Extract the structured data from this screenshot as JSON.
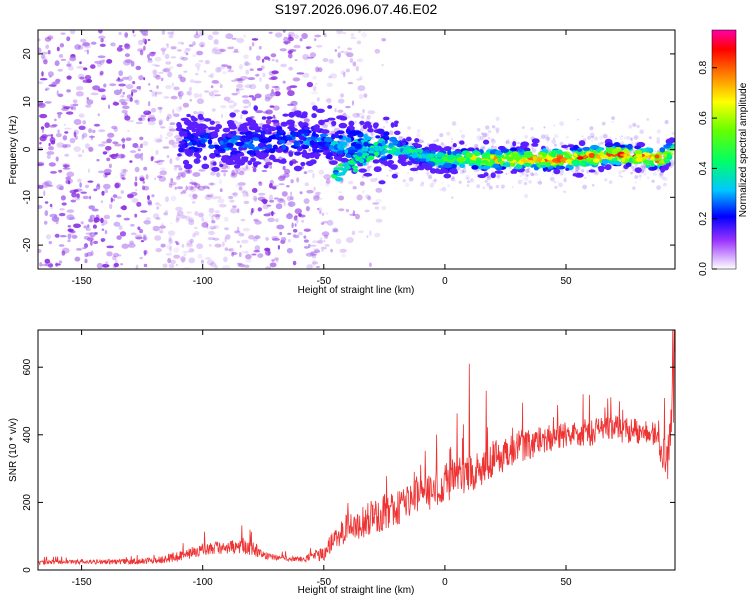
{
  "chart_data": [
    {
      "type": "heatmap",
      "title": "S197.2026.096.07.46.E02",
      "xlabel": "Height of straight line (km)",
      "ylabel": "Frequency (Hz)",
      "xlim": [
        -168,
        95
      ],
      "ylim": [
        -25,
        25
      ],
      "x_ticks": [
        -150,
        -100,
        -50,
        0,
        50
      ],
      "x_tick_labels": [
        "-150",
        "-100",
        "-50",
        "0",
        "50"
      ],
      "y_ticks": [
        -20,
        -10,
        0,
        10,
        20
      ],
      "y_tick_labels": [
        "-20",
        "-10",
        "0",
        "10",
        "20"
      ],
      "ridge": {
        "x": [
          -110,
          -90,
          -70,
          -55,
          -45,
          -30,
          -18,
          -5,
          10,
          30,
          50,
          70,
          90,
          94
        ],
        "y": [
          2,
          1,
          2,
          2,
          1,
          1,
          0,
          -2,
          -2,
          -2,
          -2,
          -1,
          -2,
          0
        ],
        "amplitude": [
          0.25,
          0.3,
          0.3,
          0.3,
          0.35,
          0.4,
          0.45,
          0.5,
          0.7,
          0.8,
          0.85,
          0.85,
          0.9,
          0.6
        ]
      },
      "branch": {
        "x": [
          -46,
          -40,
          -32,
          -25
        ],
        "y": [
          -5,
          -3,
          -1,
          1
        ]
      },
      "noise_region_x": [
        -168,
        -45
      ],
      "colorbar": {
        "label": "Normalized spectral amplitude",
        "range": [
          0,
          0.95
        ],
        "ticks": [
          0,
          0.2,
          0.4,
          0.6,
          0.8
        ],
        "tick_labels": [
          "0.0",
          "0.2",
          "0.4",
          "0.6",
          "0.8"
        ]
      }
    },
    {
      "type": "line",
      "xlabel": "Height of straight line (km)",
      "ylabel": "SNR (10 * v/v)",
      "xlim": [
        -168,
        95
      ],
      "ylim": [
        0,
        710
      ],
      "x_ticks": [
        -150,
        -100,
        -50,
        0,
        50
      ],
      "x_tick_labels": [
        "-150",
        "-100",
        "-50",
        "0",
        "50"
      ],
      "y_ticks": [
        0,
        200,
        400,
        600
      ],
      "y_tick_labels": [
        "0",
        "200",
        "400",
        "600"
      ],
      "series": [
        {
          "name": "SNR",
          "color": "#ee3333",
          "x": [
            -168,
            -150,
            -130,
            -120,
            -110,
            -100,
            -95,
            -90,
            -85,
            -80,
            -75,
            -70,
            -60,
            -50,
            -45,
            -40,
            -30,
            -20,
            -10,
            0,
            10,
            20,
            30,
            40,
            50,
            60,
            70,
            80,
            85,
            88,
            90,
            92,
            94,
            95
          ],
          "y": [
            20,
            22,
            22,
            25,
            35,
            55,
            60,
            55,
            65,
            60,
            40,
            35,
            30,
            40,
            90,
            110,
            140,
            170,
            200,
            240,
            270,
            310,
            350,
            370,
            390,
            395,
            405,
            400,
            400,
            370,
            330,
            300,
            500,
            520
          ],
          "noise_amplitude": [
            8,
            8,
            10,
            12,
            20,
            25,
            25,
            25,
            30,
            28,
            15,
            10,
            10,
            25,
            45,
            55,
            65,
            70,
            75,
            75,
            75,
            70,
            60,
            55,
            50,
            50,
            50,
            45,
            45,
            50,
            60,
            80,
            120,
            150
          ],
          "peaks": [
            {
              "x": 10,
              "y": 610
            },
            {
              "x": 17,
              "y": 530
            },
            {
              "x": 32,
              "y": 495
            },
            {
              "x": 57,
              "y": 520
            },
            {
              "x": 94,
              "y": 710
            }
          ]
        }
      ]
    }
  ]
}
